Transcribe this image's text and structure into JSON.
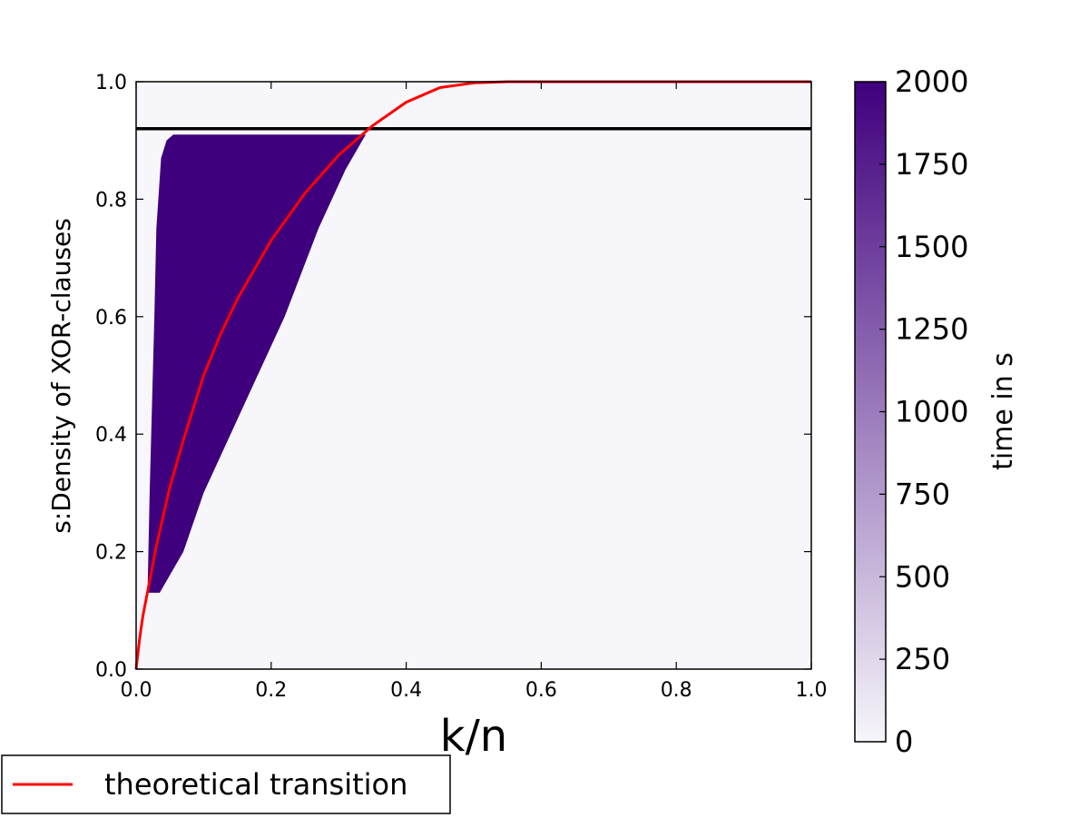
{
  "chart_data": {
    "type": "heatmap",
    "xlabel": "k/n",
    "ylabel": "s:Density of XOR-clauses",
    "xlim": [
      0,
      1
    ],
    "ylim": [
      0,
      1
    ],
    "x_ticks": [
      "0.0",
      "0.2",
      "0.4",
      "0.6",
      "0.8",
      "1.0"
    ],
    "y_ticks": [
      "0.0",
      "0.2",
      "0.4",
      "0.6",
      "0.8",
      "1.0"
    ],
    "grid": false,
    "colorbar": {
      "label": "time in s",
      "range": [
        0,
        2000
      ],
      "ticks": [
        "0",
        "250",
        "500",
        "750",
        "1000",
        "1250",
        "1500",
        "1750",
        "2000"
      ],
      "low_color": "#f7f6fb",
      "high_color": "#3f007d"
    },
    "hard_region": {
      "value": 2000,
      "top_s": 0.91,
      "left_boundary": [
        [
          0.017,
          0.13
        ],
        [
          0.02,
          0.3
        ],
        [
          0.027,
          0.6
        ],
        [
          0.03,
          0.75
        ],
        [
          0.037,
          0.87
        ],
        [
          0.045,
          0.9
        ],
        [
          0.055,
          0.91
        ]
      ],
      "right_boundary": [
        [
          0.34,
          0.91
        ],
        [
          0.31,
          0.85
        ],
        [
          0.27,
          0.75
        ],
        [
          0.22,
          0.6
        ],
        [
          0.16,
          0.45
        ],
        [
          0.1,
          0.3
        ],
        [
          0.07,
          0.2
        ],
        [
          0.035,
          0.13
        ]
      ]
    },
    "horizontal_line": {
      "y": 0.92,
      "color": "#000000"
    },
    "series": [
      {
        "name": "theoretical transition",
        "color": "#ff0000",
        "x": [
          0,
          0.005,
          0.01,
          0.02,
          0.03,
          0.05,
          0.07,
          0.1,
          0.125,
          0.15,
          0.2,
          0.25,
          0.3,
          0.35,
          0.4,
          0.45,
          0.5,
          0.55,
          0.6,
          0.8,
          1.0
        ],
        "y": [
          0,
          0.05,
          0.09,
          0.15,
          0.21,
          0.31,
          0.39,
          0.5,
          0.57,
          0.63,
          0.73,
          0.81,
          0.875,
          0.925,
          0.965,
          0.99,
          0.998,
          1.0,
          1.0,
          1.0,
          1.0
        ]
      }
    ],
    "legend": {
      "position": "bottom-left outside",
      "entries": [
        "theoretical transition"
      ]
    }
  }
}
